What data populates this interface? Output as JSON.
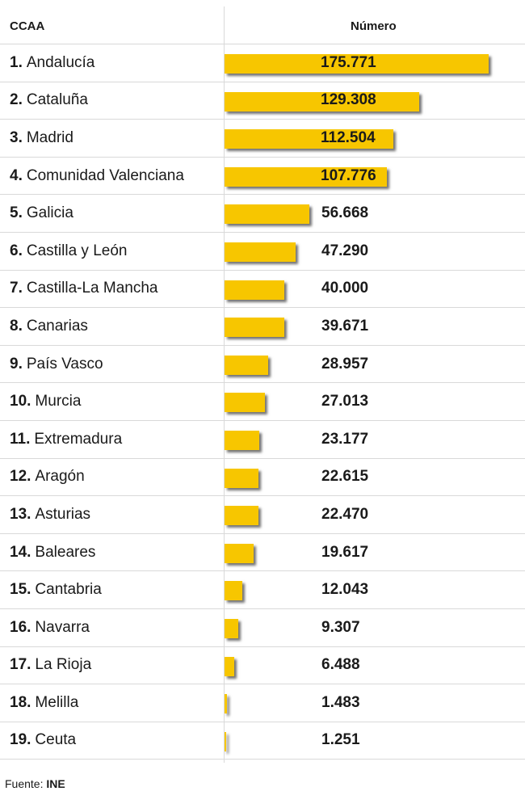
{
  "header": {
    "col_ccaa": "CCAA",
    "col_numero": "Número"
  },
  "source": {
    "label": "Fuente:",
    "name": "INE"
  },
  "colors": {
    "bar": "#f7c600"
  },
  "chart_data": {
    "type": "bar",
    "orientation": "horizontal",
    "xlabel": "Número",
    "ylabel": "CCAA",
    "xlim": [
      0,
      175771
    ],
    "rows": [
      {
        "rank": "1.",
        "name": "Andalucía",
        "value": 175771,
        "label": "175.771"
      },
      {
        "rank": "2.",
        "name": "Cataluña",
        "value": 129308,
        "label": "129.308"
      },
      {
        "rank": "3.",
        "name": "Madrid",
        "value": 112504,
        "label": "112.504"
      },
      {
        "rank": "4.",
        "name": "Comunidad Valenciana",
        "value": 107776,
        "label": "107.776"
      },
      {
        "rank": "5.",
        "name": "Galicia",
        "value": 56668,
        "label": "56.668"
      },
      {
        "rank": "6.",
        "name": "Castilla y León",
        "value": 47290,
        "label": "47.290"
      },
      {
        "rank": "7.",
        "name": "Castilla-La Mancha",
        "value": 40000,
        "label": "40.000"
      },
      {
        "rank": "8.",
        "name": "Canarias",
        "value": 39671,
        "label": "39.671"
      },
      {
        "rank": "9.",
        "name": "País Vasco",
        "value": 28957,
        "label": "28.957"
      },
      {
        "rank": "10.",
        "name": "Murcia",
        "value": 27013,
        "label": "27.013"
      },
      {
        "rank": "11.",
        "name": "Extremadura",
        "value": 23177,
        "label": "23.177"
      },
      {
        "rank": "12.",
        "name": "Aragón",
        "value": 22615,
        "label": "22.615"
      },
      {
        "rank": "13.",
        "name": "Asturias",
        "value": 22470,
        "label": "22.470"
      },
      {
        "rank": "14.",
        "name": "Baleares",
        "value": 19617,
        "label": "19.617"
      },
      {
        "rank": "15.",
        "name": "Cantabria",
        "value": 12043,
        "label": "12.043"
      },
      {
        "rank": "16.",
        "name": "Navarra",
        "value": 9307,
        "label": "9.307"
      },
      {
        "rank": "17.",
        "name": "La Rioja",
        "value": 6488,
        "label": "6.488"
      },
      {
        "rank": "18.",
        "name": "Melilla",
        "value": 1483,
        "label": "1.483"
      },
      {
        "rank": "19.",
        "name": "Ceuta",
        "value": 1251,
        "label": "1.251"
      }
    ]
  }
}
